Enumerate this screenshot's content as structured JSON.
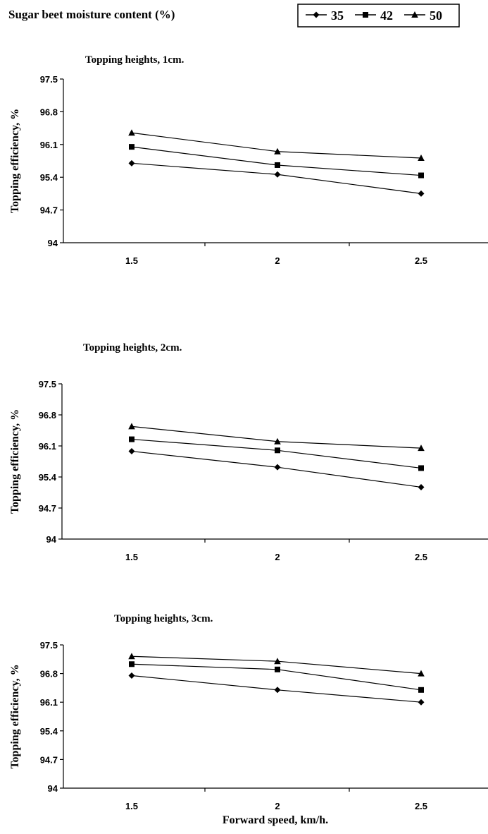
{
  "header": {
    "legend_title": "Sugar beet moisture content (%)"
  },
  "legend": [
    {
      "name": "35",
      "marker": "diamond"
    },
    {
      "name": "42",
      "marker": "square"
    },
    {
      "name": "50",
      "marker": "triangle"
    }
  ],
  "xlabel_common": "Forward speed, km/h.",
  "colors": {
    "line": "#000000",
    "background": "#ffffff"
  },
  "chart_data": [
    {
      "type": "line",
      "title": "Topping heights, 1cm.",
      "ylabel": "Topping efficiency, %",
      "xlabel": "",
      "categories": [
        "1.5",
        "2",
        "2.5"
      ],
      "yticks": [
        "94",
        "94.7",
        "95.4",
        "96.1",
        "96.8",
        "97.5"
      ],
      "ylim": [
        94,
        97.5
      ],
      "grid": false,
      "series": [
        {
          "name": "35",
          "marker": "diamond",
          "values": [
            95.7,
            95.46,
            95.05
          ]
        },
        {
          "name": "42",
          "marker": "square",
          "values": [
            96.05,
            95.66,
            95.44
          ]
        },
        {
          "name": "50",
          "marker": "triangle",
          "values": [
            96.35,
            95.95,
            95.81
          ]
        }
      ]
    },
    {
      "type": "line",
      "title": "Topping heights, 2cm.",
      "ylabel": "Topping efficiency, %",
      "xlabel": "",
      "categories": [
        "1.5",
        "2",
        "2.5"
      ],
      "yticks": [
        "94",
        "94.7",
        "95.4",
        "96.1",
        "96.8",
        "97.5"
      ],
      "ylim": [
        94,
        97.5
      ],
      "grid": false,
      "series": [
        {
          "name": "35",
          "marker": "diamond",
          "values": [
            95.98,
            95.62,
            95.17
          ]
        },
        {
          "name": "42",
          "marker": "square",
          "values": [
            96.25,
            96.0,
            95.6
          ]
        },
        {
          "name": "50",
          "marker": "triangle",
          "values": [
            96.54,
            96.2,
            96.05
          ]
        }
      ]
    },
    {
      "type": "line",
      "title": "Topping heights, 3cm.",
      "ylabel": "Topping efficiency, %",
      "xlabel": "Forward speed, km/h.",
      "categories": [
        "1.5",
        "2",
        "2.5"
      ],
      "yticks": [
        "94",
        "94.7",
        "95.4",
        "96.1",
        "96.8",
        "97.5"
      ],
      "ylim": [
        94,
        97.5
      ],
      "grid": false,
      "series": [
        {
          "name": "35",
          "marker": "diamond",
          "values": [
            96.75,
            96.4,
            96.1
          ]
        },
        {
          "name": "42",
          "marker": "square",
          "values": [
            97.03,
            96.9,
            96.4
          ]
        },
        {
          "name": "50",
          "marker": "triangle",
          "values": [
            97.22,
            97.1,
            96.8
          ]
        }
      ]
    }
  ]
}
